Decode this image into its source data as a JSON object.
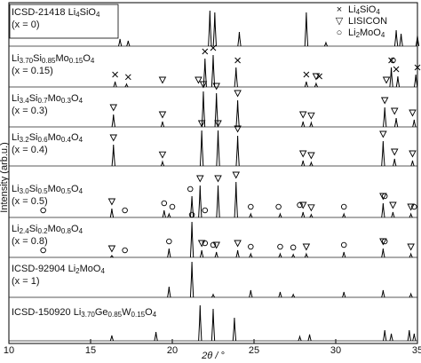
{
  "chart_data": {
    "type": "xrd",
    "xlabel": "2θ / °",
    "ylabel": "Intensity (arb.u.)",
    "xlim": [
      10,
      35
    ],
    "xticks": [
      10,
      15,
      20,
      25,
      30,
      35
    ],
    "legend": [
      {
        "symbol": "×",
        "label": "Li4SiO4"
      },
      {
        "symbol": "▽",
        "label": "LISICON"
      },
      {
        "symbol": "○",
        "label": "Li2MoO4"
      }
    ],
    "series": [
      {
        "name": "ICSD-21418 Li4SiO4",
        "note": "(x = 0)",
        "x": [
          16.8,
          17.3,
          22.3,
          22.6,
          24.1,
          28.2,
          29.4,
          33.7,
          34.0,
          35.0
        ],
        "values": [
          20,
          15,
          100,
          95,
          40,
          95,
          10,
          45,
          35,
          30
        ],
        "markers": [
          [],
          [],
          []
        ]
      },
      {
        "name": "Li3.70Si0.85Mo0.15O4",
        "note": "(x = 0.15)",
        "x": [
          16.5,
          17.2,
          22.0,
          22.5,
          23.9,
          28.2,
          28.8,
          33.4,
          33.8,
          34.9
        ],
        "values": [
          15,
          8,
          80,
          90,
          55,
          15,
          10,
          55,
          30,
          35
        ],
        "markers": [
          [
            16.5,
            17.3,
            22.0,
            22.5,
            24.0,
            28.2,
            29.0,
            33.4,
            33.7,
            35.0
          ],
          [
            19.4,
            21.6,
            28.8,
            33.1
          ],
          [
            33.5
          ]
        ]
      },
      {
        "name": "Li3.4Si0.7Mo0.3O4",
        "note": "(x = 0.3)",
        "x": [
          16.4,
          19.4,
          21.9,
          22.7,
          24.0,
          28.0,
          28.5,
          33.0,
          33.7,
          34.8
        ],
        "values": [
          35,
          15,
          100,
          95,
          75,
          15,
          12,
          55,
          25,
          20
        ],
        "markers": [
          [],
          [
            16.4,
            19.4,
            21.9,
            22.7,
            24.0,
            28.0,
            28.5,
            33.0,
            33.6,
            34.7
          ],
          []
        ]
      },
      {
        "name": "Li3.2Si0.6Mo0.4O4",
        "note": "(x = 0.4)",
        "x": [
          16.4,
          19.4,
          21.8,
          22.8,
          24.0,
          28.0,
          28.5,
          32.9,
          33.6,
          34.7
        ],
        "values": [
          60,
          12,
          100,
          100,
          85,
          15,
          10,
          70,
          20,
          15
        ],
        "markers": [
          [],
          [
            16.4,
            19.4,
            21.8,
            22.8,
            24.0,
            28.0,
            28.5,
            32.9,
            33.6,
            34.7
          ],
          []
        ]
      },
      {
        "name": "Li3.0Si0.5Mo0.5O4",
        "note": "(x = 0.5)",
        "x": [
          16.3,
          19.5,
          19.8,
          21.2,
          21.7,
          22.8,
          23.9,
          24.8,
          26.6,
          28.0,
          28.5,
          30.5,
          32.9,
          33.5,
          34.6
        ],
        "values": [
          25,
          20,
          10,
          60,
          90,
          90,
          100,
          10,
          10,
          15,
          8,
          10,
          40,
          15,
          10
        ],
        "markers": [
          [],
          [
            16.3,
            21.7,
            22.8,
            23.9,
            28.0,
            28.5,
            32.9,
            33.5,
            34.6
          ],
          [
            12.1,
            17.1,
            19.5,
            20.0,
            21.1,
            22.0,
            24.8,
            26.5,
            27.8,
            30.5,
            33.0,
            34.8
          ]
        ]
      },
      {
        "name": "Li2.4Si0.2Mo0.8O4",
        "note": "(x = 0.8)",
        "x": [
          16.3,
          19.8,
          21.2,
          21.8,
          22.7,
          24.0,
          24.8,
          26.6,
          27.4,
          28.2,
          30.5,
          32.9,
          34.6
        ],
        "values": [
          5,
          25,
          100,
          20,
          15,
          20,
          10,
          10,
          8,
          10,
          15,
          25,
          10
        ],
        "markers": [
          [],
          [
            16.3,
            21.8,
            22.7,
            24.0,
            28.2,
            32.9,
            34.6
          ],
          [
            12.1,
            17.1,
            19.8,
            21.2,
            22.0,
            22.5,
            24.8,
            26.6,
            27.4,
            30.5,
            33.0
          ]
        ]
      },
      {
        "name": "ICSD-92904 Li2MoO4",
        "note": "(x = 1)",
        "x": [
          19.8,
          21.2,
          22.5,
          24.8,
          26.6,
          27.4,
          30.5,
          32.9,
          34.6
        ],
        "values": [
          30,
          100,
          8,
          20,
          15,
          8,
          15,
          20,
          10
        ],
        "markers": [
          [],
          [],
          []
        ]
      },
      {
        "name": "ICSD-150920 Li3.70Ge0.85W0.15O4",
        "x": [
          16.3,
          19.0,
          21.7,
          22.5,
          23.8,
          27.8,
          28.4,
          33.0,
          33.4,
          34.5,
          34.8
        ],
        "values": [
          15,
          25,
          100,
          90,
          65,
          12,
          18,
          30,
          20,
          30,
          20
        ],
        "markers": [
          [],
          [],
          []
        ]
      }
    ]
  }
}
